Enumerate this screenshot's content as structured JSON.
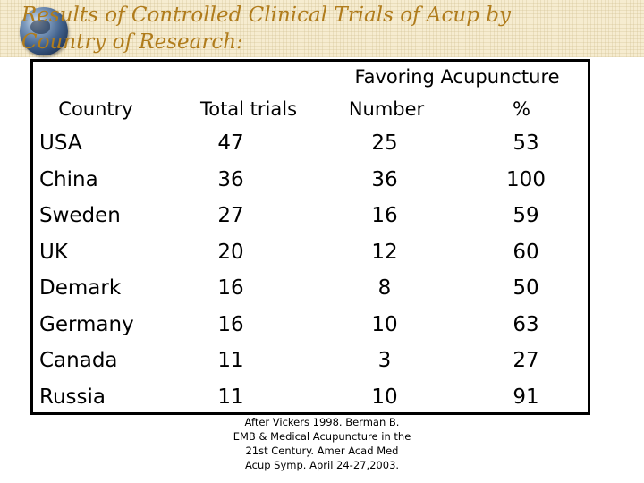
{
  "title": {
    "line1": "Results of Controlled Clinical Trials of Acup by",
    "line2": "Country of Research:"
  },
  "table": {
    "group_header": "Favoring  Acupuncture",
    "headers": [
      "Country",
      "Total trials",
      "Number",
      "%"
    ],
    "rows": [
      [
        "USA",
        "47",
        "25",
        "53"
      ],
      [
        "China",
        "36",
        "36",
        "100"
      ],
      [
        "Sweden",
        "27",
        "16",
        "59"
      ],
      [
        "UK",
        "20",
        "12",
        "60"
      ],
      [
        "Demark",
        "16",
        "8",
        "50"
      ],
      [
        "Germany",
        "16",
        "10",
        "63"
      ],
      [
        "Canada",
        "11",
        "3",
        "27"
      ],
      [
        "Russia",
        "11",
        "10",
        "91"
      ]
    ]
  },
  "citation": {
    "lines": [
      "After Vickers 1998. Berman B.",
      "EMB & Medical Acupuncture in the",
      "21st Century. Amer Acad Med",
      "Acup Symp. April 24-27,2003."
    ]
  },
  "icons": {
    "decoration": "globe-icon"
  }
}
